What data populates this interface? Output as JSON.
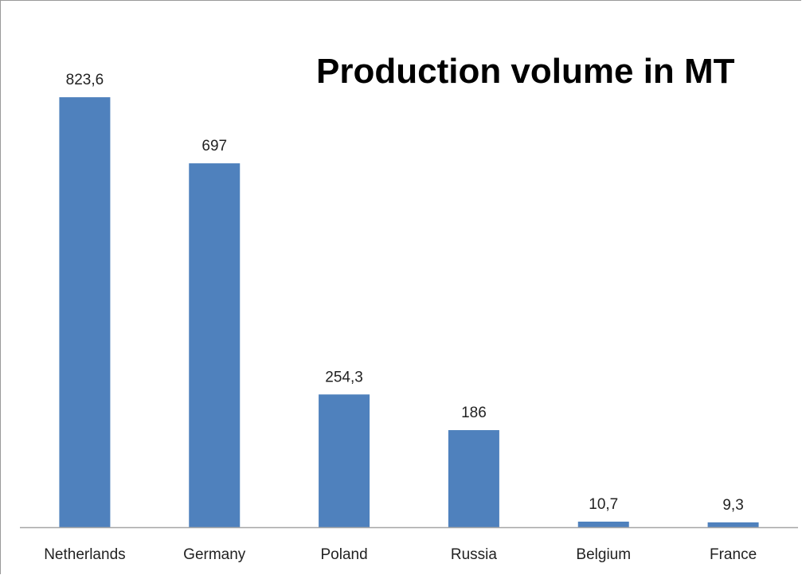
{
  "chart_data": {
    "type": "bar",
    "title": "Production volume in MT",
    "xlabel": "",
    "ylabel": "",
    "categories": [
      "Netherlands",
      "Germany",
      "Poland",
      "Russia",
      "Belgium",
      "France"
    ],
    "values": [
      823.6,
      697,
      254.3,
      186,
      10.7,
      9.3
    ],
    "data_labels": [
      "823,6",
      "697",
      "254,3",
      "186",
      "10,7",
      "9,3"
    ],
    "ylim": [
      0,
      900
    ],
    "grid": false,
    "legend": "none",
    "bar_color": "#4F81BD",
    "axis_color": "#A6A6A6"
  }
}
